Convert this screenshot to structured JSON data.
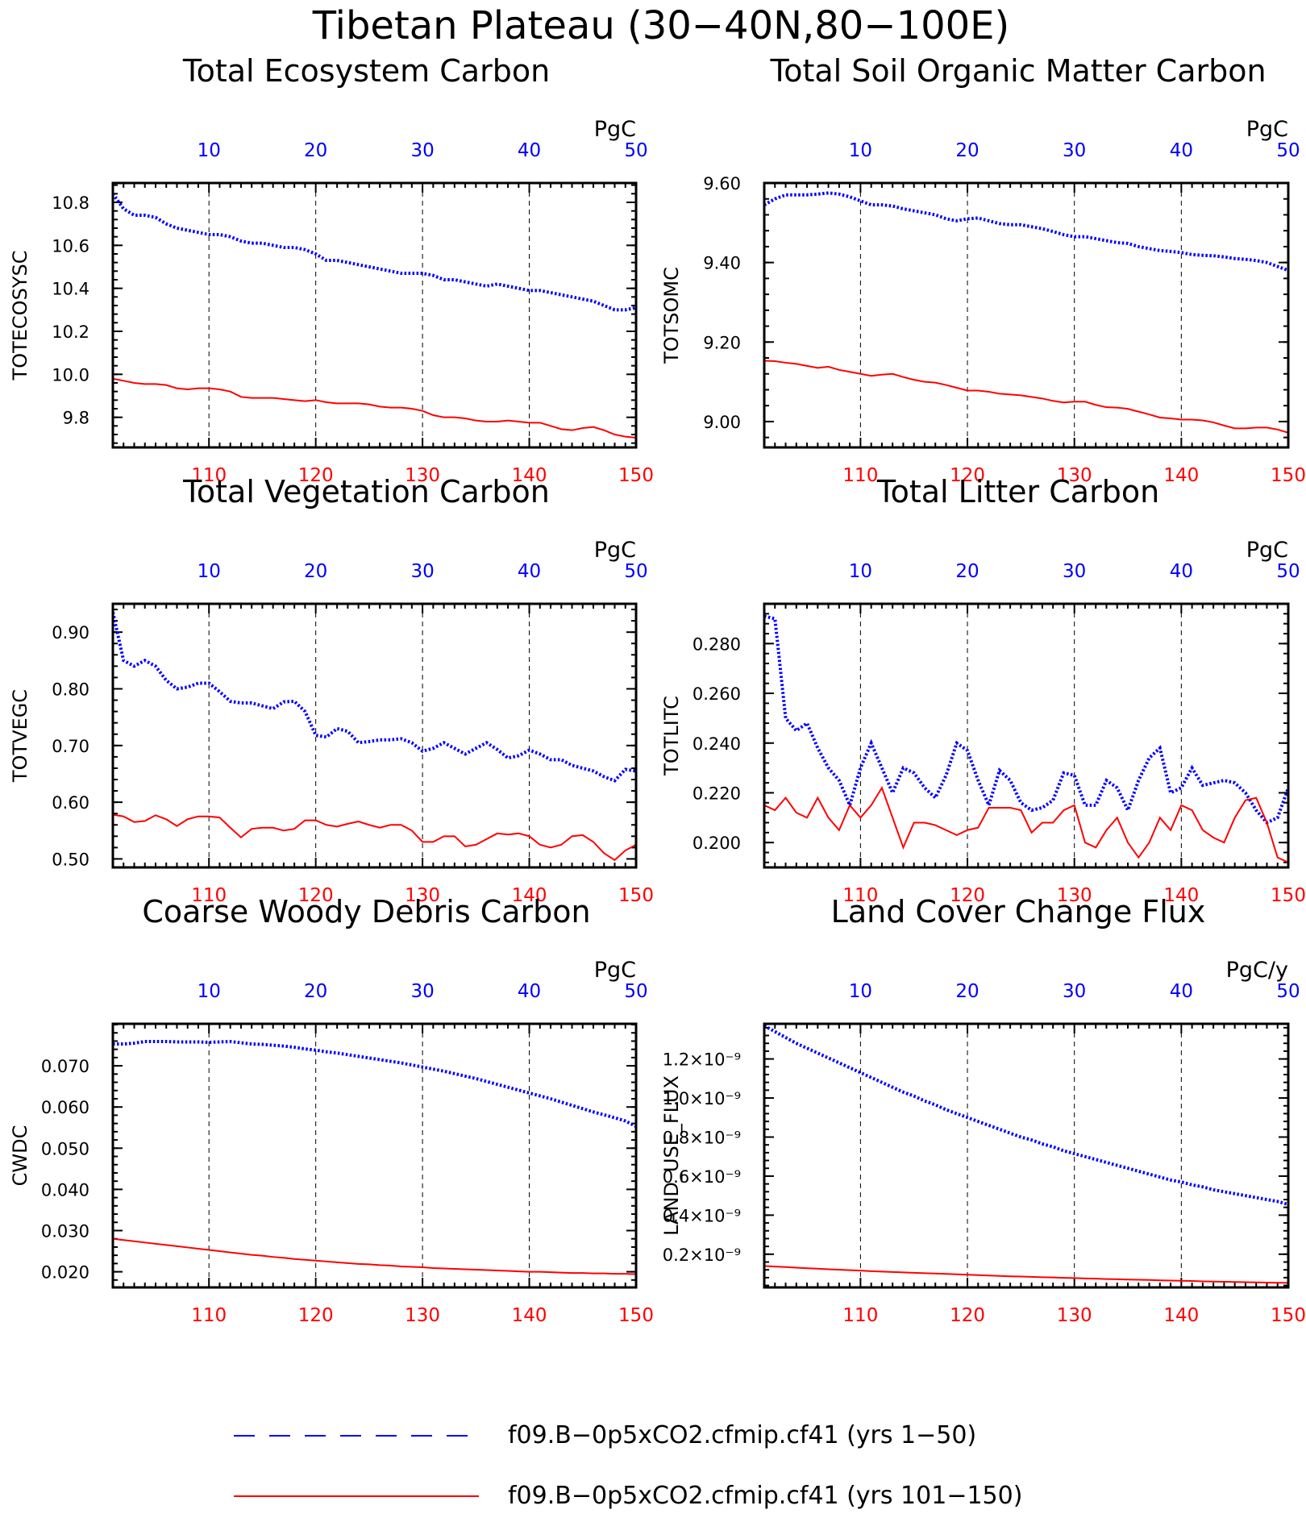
{
  "page_title": "Tibetan Plateau (30−40N,80−100E)",
  "colors": {
    "top_axis": "#0000ff",
    "bottom_axis": "#ff0000",
    "series1": "#0000ff",
    "series2": "#ff0000",
    "grid": "#000000"
  },
  "legend": {
    "entries": [
      {
        "label": "f09.B−0p5xCO2.cfmip.cf41 (yrs 1−50)",
        "style": "dashed",
        "color": "#0000ff"
      },
      {
        "label": "f09.B−0p5xCO2.cfmip.cf41 (yrs 101−150)",
        "style": "solid",
        "color": "#ff0000"
      }
    ]
  },
  "chart_data": [
    {
      "type": "line",
      "title": "Total Ecosystem Carbon",
      "ylabel": "TOTECOSYSC",
      "units": "PgC",
      "x_top": {
        "ticks": [
          10,
          20,
          30,
          40,
          50
        ],
        "range": [
          1,
          50
        ]
      },
      "x_bottom": {
        "ticks": [
          110,
          120,
          130,
          140,
          150
        ],
        "range": [
          101,
          150
        ]
      },
      "ylim": [
        9.66,
        10.89
      ],
      "yticks": [
        9.8,
        10.0,
        10.2,
        10.4,
        10.6,
        10.8
      ],
      "ytick_labels": [
        "9.8",
        "10.0",
        "10.2",
        "10.4",
        "10.6",
        "10.8"
      ],
      "series": [
        {
          "name": "f09.B−0p5xCO2.cfmip.cf41 (yrs 1−50)",
          "axis": "top",
          "style": "dotted",
          "values": [
            10.84,
            10.77,
            10.74,
            10.74,
            10.73,
            10.7,
            10.68,
            10.67,
            10.66,
            10.65,
            10.65,
            10.64,
            10.62,
            10.61,
            10.61,
            10.6,
            10.59,
            10.59,
            10.58,
            10.56,
            10.53,
            10.53,
            10.52,
            10.51,
            10.5,
            10.49,
            10.48,
            10.47,
            10.47,
            10.47,
            10.46,
            10.44,
            10.44,
            10.43,
            10.42,
            10.41,
            10.42,
            10.41,
            10.4,
            10.39,
            10.39,
            10.38,
            10.37,
            10.36,
            10.35,
            10.34,
            10.32,
            10.3,
            10.3,
            10.31
          ]
        },
        {
          "name": "f09.B−0p5xCO2.cfmip.cf41 (yrs 101−150)",
          "axis": "bottom",
          "style": "solid",
          "values": [
            9.98,
            9.97,
            9.96,
            9.955,
            9.955,
            9.95,
            9.935,
            9.93,
            9.935,
            9.935,
            9.93,
            9.92,
            9.895,
            9.89,
            9.89,
            9.89,
            9.885,
            9.88,
            9.875,
            9.88,
            9.87,
            9.865,
            9.865,
            9.865,
            9.86,
            9.85,
            9.845,
            9.845,
            9.84,
            9.83,
            9.81,
            9.8,
            9.8,
            9.795,
            9.785,
            9.78,
            9.78,
            9.785,
            9.78,
            9.775,
            9.775,
            9.76,
            9.745,
            9.74,
            9.75,
            9.755,
            9.74,
            9.72,
            9.71,
            9.705
          ]
        }
      ]
    },
    {
      "type": "line",
      "title": "Total Soil Organic Matter Carbon",
      "ylabel": "TOTSOMC",
      "units": "PgC",
      "x_top": {
        "ticks": [
          10,
          20,
          30,
          40,
          50
        ],
        "range": [
          1,
          50
        ]
      },
      "x_bottom": {
        "ticks": [
          110,
          120,
          130,
          140,
          150
        ],
        "range": [
          101,
          150
        ]
      },
      "ylim": [
        8.935,
        9.6
      ],
      "yticks": [
        9.0,
        9.2,
        9.4,
        9.6
      ],
      "ytick_labels": [
        "9.00",
        "9.20",
        "9.40",
        "9.60"
      ],
      "series": [
        {
          "name": "f09.B−0p5xCO2.cfmip.cf41 (yrs 1−50)",
          "axis": "top",
          "style": "dotted",
          "values": [
            9.545,
            9.56,
            9.57,
            9.57,
            9.57,
            9.572,
            9.575,
            9.572,
            9.565,
            9.555,
            9.545,
            9.545,
            9.542,
            9.535,
            9.53,
            9.525,
            9.52,
            9.51,
            9.505,
            9.51,
            9.512,
            9.505,
            9.498,
            9.495,
            9.495,
            9.49,
            9.485,
            9.478,
            9.47,
            9.465,
            9.465,
            9.46,
            9.455,
            9.45,
            9.448,
            9.44,
            9.435,
            9.43,
            9.428,
            9.425,
            9.42,
            9.418,
            9.417,
            9.414,
            9.41,
            9.408,
            9.405,
            9.4,
            9.39,
            9.38
          ]
        },
        {
          "name": "f09.B−0p5xCO2.cfmip.cf41 (yrs 101−150)",
          "axis": "bottom",
          "style": "solid",
          "values": [
            9.153,
            9.152,
            9.148,
            9.145,
            9.14,
            9.135,
            9.138,
            9.13,
            9.125,
            9.12,
            9.115,
            9.118,
            9.12,
            9.112,
            9.105,
            9.1,
            9.098,
            9.092,
            9.085,
            9.078,
            9.078,
            9.075,
            9.07,
            9.068,
            9.066,
            9.062,
            9.058,
            9.052,
            9.048,
            9.05,
            9.05,
            9.042,
            9.036,
            9.035,
            9.032,
            9.025,
            9.018,
            9.01,
            9.008,
            9.005,
            9.005,
            9.003,
            8.998,
            8.99,
            8.983,
            8.983,
            8.985,
            8.985,
            8.98,
            8.972
          ]
        }
      ]
    },
    {
      "type": "line",
      "title": "Total Vegetation Carbon",
      "ylabel": "TOTVEGC",
      "units": "PgC",
      "x_top": {
        "ticks": [
          10,
          20,
          30,
          40,
          50
        ],
        "range": [
          1,
          50
        ]
      },
      "x_bottom": {
        "ticks": [
          110,
          120,
          130,
          140,
          150
        ],
        "range": [
          101,
          150
        ]
      },
      "ylim": [
        0.485,
        0.95
      ],
      "yticks": [
        0.5,
        0.6,
        0.7,
        0.8,
        0.9
      ],
      "ytick_labels": [
        "0.50",
        "0.60",
        "0.70",
        "0.80",
        "0.90"
      ],
      "series": [
        {
          "name": "f09.B−0p5xCO2.cfmip.cf41 (yrs 1−50)",
          "axis": "top",
          "style": "dotted",
          "values": [
            0.935,
            0.85,
            0.84,
            0.85,
            0.84,
            0.815,
            0.8,
            0.803,
            0.81,
            0.81,
            0.795,
            0.778,
            0.775,
            0.775,
            0.77,
            0.765,
            0.777,
            0.778,
            0.76,
            0.718,
            0.715,
            0.73,
            0.725,
            0.705,
            0.707,
            0.71,
            0.71,
            0.712,
            0.705,
            0.69,
            0.695,
            0.705,
            0.695,
            0.685,
            0.695,
            0.705,
            0.693,
            0.678,
            0.682,
            0.692,
            0.685,
            0.675,
            0.675,
            0.665,
            0.66,
            0.655,
            0.645,
            0.638,
            0.658,
            0.655
          ]
        },
        {
          "name": "f09.B−0p5xCO2.cfmip.cf41 (yrs 101−150)",
          "axis": "bottom",
          "style": "solid",
          "values": [
            0.578,
            0.575,
            0.565,
            0.567,
            0.577,
            0.57,
            0.558,
            0.57,
            0.575,
            0.575,
            0.573,
            0.555,
            0.538,
            0.553,
            0.555,
            0.555,
            0.55,
            0.553,
            0.568,
            0.568,
            0.56,
            0.557,
            0.562,
            0.566,
            0.56,
            0.555,
            0.56,
            0.56,
            0.55,
            0.53,
            0.53,
            0.54,
            0.54,
            0.522,
            0.525,
            0.535,
            0.545,
            0.543,
            0.545,
            0.54,
            0.525,
            0.52,
            0.525,
            0.54,
            0.542,
            0.53,
            0.51,
            0.498,
            0.515,
            0.525
          ]
        }
      ]
    },
    {
      "type": "line",
      "title": "Total Litter Carbon",
      "ylabel": "TOTLITC",
      "units": "PgC",
      "x_top": {
        "ticks": [
          10,
          20,
          30,
          40,
          50
        ],
        "range": [
          1,
          50
        ]
      },
      "x_bottom": {
        "ticks": [
          110,
          120,
          130,
          140,
          150
        ],
        "range": [
          101,
          150
        ]
      },
      "ylim": [
        0.19,
        0.296
      ],
      "yticks": [
        0.2,
        0.22,
        0.24,
        0.26,
        0.28
      ],
      "ytick_labels": [
        "0.200",
        "0.220",
        "0.240",
        "0.260",
        "0.280"
      ],
      "series": [
        {
          "name": "f09.B−0p5xCO2.cfmip.cf41 (yrs 1−50)",
          "axis": "top",
          "style": "dotted",
          "values": [
            0.291,
            0.29,
            0.25,
            0.245,
            0.248,
            0.238,
            0.23,
            0.225,
            0.215,
            0.23,
            0.24,
            0.23,
            0.22,
            0.23,
            0.228,
            0.222,
            0.218,
            0.227,
            0.24,
            0.237,
            0.225,
            0.215,
            0.229,
            0.225,
            0.216,
            0.213,
            0.214,
            0.217,
            0.228,
            0.227,
            0.215,
            0.215,
            0.225,
            0.222,
            0.213,
            0.225,
            0.234,
            0.238,
            0.22,
            0.222,
            0.23,
            0.223,
            0.224,
            0.225,
            0.224,
            0.22,
            0.213,
            0.208,
            0.21,
            0.222
          ]
        },
        {
          "name": "f09.B−0p5xCO2.cfmip.cf41 (yrs 101−150)",
          "axis": "bottom",
          "style": "solid",
          "values": [
            0.215,
            0.213,
            0.218,
            0.212,
            0.21,
            0.218,
            0.21,
            0.205,
            0.215,
            0.21,
            0.215,
            0.222,
            0.21,
            0.198,
            0.208,
            0.208,
            0.207,
            0.205,
            0.203,
            0.205,
            0.206,
            0.214,
            0.214,
            0.214,
            0.213,
            0.204,
            0.208,
            0.208,
            0.213,
            0.215,
            0.2,
            0.198,
            0.205,
            0.21,
            0.2,
            0.194,
            0.2,
            0.21,
            0.205,
            0.215,
            0.213,
            0.205,
            0.202,
            0.2,
            0.21,
            0.217,
            0.218,
            0.208,
            0.194,
            0.192
          ]
        }
      ]
    },
    {
      "type": "line",
      "title": "Coarse Woody Debris Carbon",
      "ylabel": "CWDC",
      "units": "PgC",
      "x_top": {
        "ticks": [
          10,
          20,
          30,
          40,
          50
        ],
        "range": [
          1,
          50
        ]
      },
      "x_bottom": {
        "ticks": [
          110,
          120,
          130,
          140,
          150
        ],
        "range": [
          101,
          150
        ]
      },
      "ylim": [
        0.0162,
        0.0802
      ],
      "yticks": [
        0.02,
        0.03,
        0.04,
        0.05,
        0.06,
        0.07
      ],
      "ytick_labels": [
        "0.020",
        "0.030",
        "0.040",
        "0.050",
        "0.060",
        "0.070"
      ],
      "series": [
        {
          "name": "f09.B−0p5xCO2.cfmip.cf41 (yrs 1−50)",
          "axis": "top",
          "style": "dotted",
          "values": [
            0.0753,
            0.0753,
            0.0755,
            0.0759,
            0.0759,
            0.0759,
            0.0758,
            0.0758,
            0.0758,
            0.0757,
            0.0758,
            0.0759,
            0.0756,
            0.0753,
            0.0752,
            0.075,
            0.0748,
            0.0745,
            0.0741,
            0.0738,
            0.0734,
            0.0731,
            0.0727,
            0.0723,
            0.0719,
            0.0715,
            0.0711,
            0.0707,
            0.0702,
            0.0697,
            0.0692,
            0.0687,
            0.0681,
            0.0675,
            0.0669,
            0.0662,
            0.0655,
            0.0648,
            0.0641,
            0.0634,
            0.0627,
            0.062,
            0.0612,
            0.0604,
            0.0596,
            0.0588,
            0.0581,
            0.0574,
            0.0566,
            0.0553
          ]
        },
        {
          "name": "f09.B−0p5xCO2.cfmip.cf41 (yrs 101−150)",
          "axis": "bottom",
          "style": "solid",
          "values": [
            0.028,
            0.0277,
            0.0274,
            0.0271,
            0.0268,
            0.0265,
            0.0262,
            0.0259,
            0.0256,
            0.0253,
            0.025,
            0.0247,
            0.0244,
            0.0241,
            0.0239,
            0.0236,
            0.0234,
            0.0231,
            0.0229,
            0.0227,
            0.0225,
            0.0223,
            0.0221,
            0.0219,
            0.0218,
            0.0216,
            0.0215,
            0.0213,
            0.0212,
            0.0211,
            0.0209,
            0.0208,
            0.0207,
            0.0206,
            0.0205,
            0.0204,
            0.0203,
            0.0202,
            0.0201,
            0.02,
            0.02,
            0.0199,
            0.0198,
            0.0197,
            0.0197,
            0.0196,
            0.0196,
            0.0195,
            0.0195,
            0.0194
          ]
        }
      ]
    },
    {
      "type": "line",
      "title": "Land Cover Change Flux",
      "ylabel": "LAND_USE_FLUX",
      "units": "PgC/y",
      "x_top": {
        "ticks": [
          10,
          20,
          30,
          40,
          50
        ],
        "range": [
          1,
          50
        ]
      },
      "x_bottom": {
        "ticks": [
          110,
          120,
          130,
          140,
          150
        ],
        "range": [
          101,
          150
        ]
      },
      "ylim": [
        3e-11,
        1.38e-09
      ],
      "yticks": [
        2e-10,
        4e-10,
        6e-10,
        8e-10,
        1e-09,
        1.2e-09
      ],
      "ytick_labels": [
        "0.2×10⁻⁹",
        "0.4×10⁻⁹",
        "0.6×10⁻⁹",
        "0.8×10⁻⁹",
        "1.0×10⁻⁹",
        "1.2×10⁻⁹"
      ],
      "series": [
        {
          "name": "f09.B−0p5xCO2.cfmip.cf41 (yrs 1−50)",
          "axis": "top",
          "style": "dotted",
          "values": [
            1.37e-09,
            1.34e-09,
            1.31e-09,
            1.28e-09,
            1.255e-09,
            1.23e-09,
            1.205e-09,
            1.18e-09,
            1.155e-09,
            1.13e-09,
            1.105e-09,
            1.08e-09,
            1.055e-09,
            1.03e-09,
            1.01e-09,
            9.85e-10,
            9.65e-10,
            9.4e-10,
            9.2e-10,
            9e-10,
            8.8e-10,
            8.6e-10,
            8.4e-10,
            8.2e-10,
            8e-10,
            7.85e-10,
            7.65e-10,
            7.5e-10,
            7.3e-10,
            7.15e-10,
            7e-10,
            6.85e-10,
            6.7e-10,
            6.55e-10,
            6.4e-10,
            6.25e-10,
            6.1e-10,
            5.95e-10,
            5.8e-10,
            5.7e-10,
            5.55e-10,
            5.45e-10,
            5.3e-10,
            5.2e-10,
            5.1e-10,
            5e-10,
            4.9e-10,
            4.8e-10,
            4.7e-10,
            4.55e-10
          ]
        },
        {
          "name": "f09.B−0p5xCO2.cfmip.cf41 (yrs 101−150)",
          "axis": "bottom",
          "style": "solid",
          "values": [
            1.4e-10,
            1.37e-10,
            1.34e-10,
            1.31e-10,
            1.28e-10,
            1.26e-10,
            1.23e-10,
            1.21e-10,
            1.18e-10,
            1.16e-10,
            1.13e-10,
            1.11e-10,
            1.09e-10,
            1.07e-10,
            1.05e-10,
            1.03e-10,
            1.01e-10,
            9.9e-11,
            9.7e-11,
            9.5e-11,
            9.3e-11,
            9.1e-11,
            8.9e-11,
            8.7e-11,
            8.6e-11,
            8.4e-11,
            8.2e-11,
            8.1e-11,
            7.9e-11,
            7.8e-11,
            7.6e-11,
            7.5e-11,
            7.3e-11,
            7.2e-11,
            7e-11,
            6.9e-11,
            6.8e-11,
            6.6e-11,
            6.5e-11,
            6.4e-11,
            6.3e-11,
            6.1e-11,
            6e-11,
            5.9e-11,
            5.8e-11,
            5.7e-11,
            5.6e-11,
            5.5e-11,
            5.4e-11,
            5.3e-11
          ]
        }
      ]
    }
  ]
}
